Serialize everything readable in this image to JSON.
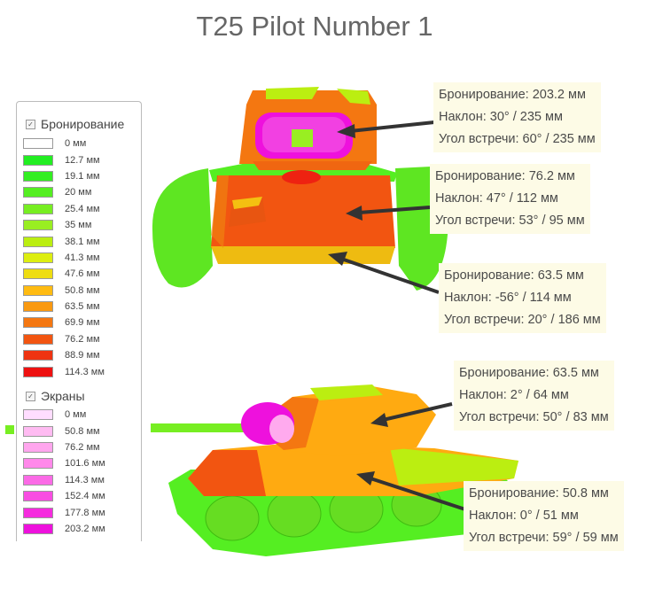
{
  "title": "T25 Pilot Number 1",
  "legend": {
    "armor_header": "Бронирование",
    "armor_items": [
      {
        "label": "0 мм",
        "color": "#ffffff"
      },
      {
        "label": "12.7 мм",
        "color": "#22ee22"
      },
      {
        "label": "19.1 мм",
        "color": "#33ee22"
      },
      {
        "label": "20 мм",
        "color": "#55ee22"
      },
      {
        "label": "25.4 мм",
        "color": "#77ee22"
      },
      {
        "label": "35 мм",
        "color": "#99ee22"
      },
      {
        "label": "38.1 мм",
        "color": "#bbee11"
      },
      {
        "label": "41.3 мм",
        "color": "#ddee11"
      },
      {
        "label": "47.6 мм",
        "color": "#eedd11"
      },
      {
        "label": "50.8 мм",
        "color": "#ffbb11"
      },
      {
        "label": "63.5 мм",
        "color": "#f99911"
      },
      {
        "label": "69.9 мм",
        "color": "#f47711"
      },
      {
        "label": "76.2 мм",
        "color": "#f25511"
      },
      {
        "label": "88.9 мм",
        "color": "#ee3311"
      },
      {
        "label": "114.3 мм",
        "color": "#ee1111"
      }
    ],
    "screens_header": "Экраны",
    "screen_items": [
      {
        "label": "0 мм",
        "color": "#ffddff"
      },
      {
        "label": "50.8 мм",
        "color": "#ffbbf2"
      },
      {
        "label": "76.2 мм",
        "color": "#ffa6ee"
      },
      {
        "label": "101.6 мм",
        "color": "#ff88ea"
      },
      {
        "label": "114.3 мм",
        "color": "#fb6ae6"
      },
      {
        "label": "152.4 мм",
        "color": "#f84de2"
      },
      {
        "label": "177.8 мм",
        "color": "#f52bde"
      },
      {
        "label": "203.2 мм",
        "color": "#ee11dd"
      }
    ]
  },
  "annotations": [
    {
      "armor": "Бронирование: 203.2 мм",
      "slope": "Наклон: 30° / 235 мм",
      "angle": "Угол встречи: 60° / 235 мм"
    },
    {
      "armor": "Бронирование: 76.2 мм",
      "slope": "Наклон: 47° / 112 мм",
      "angle": "Угол встречи: 53° / 95 мм"
    },
    {
      "armor": "Бронирование: 63.5 мм",
      "slope": "Наклон: -56° / 114 мм",
      "angle": "Угол встречи: 20° / 186 мм"
    },
    {
      "armor": "Бронирование: 63.5 мм",
      "slope": "Наклон: 2° / 64 мм",
      "angle": "Угол встречи: 50° / 83 мм"
    },
    {
      "armor": "Бронирование: 50.8 мм",
      "slope": "Наклон: 0° / 51 мм",
      "angle": "Угол встречи: 59° / 59 мм"
    }
  ]
}
